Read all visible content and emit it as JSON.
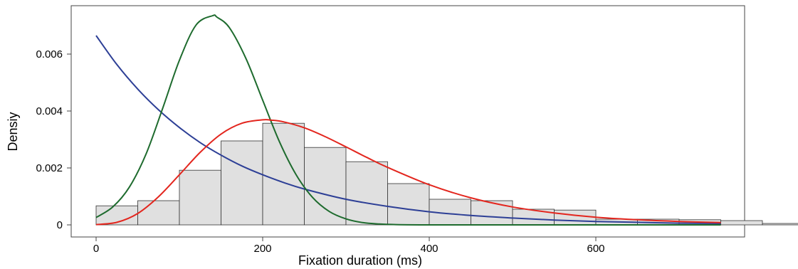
{
  "chart_data": {
    "type": "bar",
    "title": "",
    "xlabel": "Fixation duration (ms)",
    "ylabel": "Densiy",
    "xlim": [
      -50,
      780
    ],
    "ylim": [
      -0.0003,
      0.0078
    ],
    "x_ticks": [
      {
        "value": 0,
        "label": "0"
      },
      {
        "value": 200,
        "label": "200"
      },
      {
        "value": 400,
        "label": "400"
      },
      {
        "value": 600,
        "label": "600"
      }
    ],
    "y_ticks": [
      {
        "value": 0,
        "label": "0"
      },
      {
        "value": 0.002,
        "label": "0.002"
      },
      {
        "value": 0.004,
        "label": "0.004"
      },
      {
        "value": 0.006,
        "label": "0.006"
      }
    ],
    "grid": false,
    "histogram": {
      "bin_width": 50,
      "bin_starts": [
        0,
        50,
        100,
        150,
        200,
        250,
        300,
        350,
        400,
        450,
        500,
        550,
        600,
        650,
        700,
        750,
        800
      ],
      "values": [
        0.00067,
        0.00085,
        0.00192,
        0.00295,
        0.00357,
        0.00272,
        0.00222,
        0.00145,
        0.0009,
        0.00085,
        0.00055,
        0.00052,
        0.0002,
        0.0002,
        0.00018,
        0.00015,
        5e-05
      ],
      "fill_color": "#e0e0e0",
      "stroke_color": "#333333"
    },
    "series": [
      {
        "color": "#2d3f96",
        "type": "line",
        "x": [
          0,
          25,
          50,
          75,
          100,
          125,
          150,
          175,
          200,
          225,
          250,
          300,
          350,
          400,
          450,
          500,
          550,
          600,
          650,
          700,
          750
        ],
        "y": [
          0.00665,
          0.00563,
          0.00477,
          0.00404,
          0.00342,
          0.00289,
          0.00245,
          0.00207,
          0.00176,
          0.00149,
          0.00126,
          0.0009,
          0.00065,
          0.00046,
          0.00033,
          0.00024,
          0.00017,
          0.00012,
          9e-05,
          6e-05,
          5e-05
        ]
      },
      {
        "color": "#1e6b2e",
        "type": "line",
        "x": [
          0,
          20,
          40,
          60,
          80,
          100,
          120,
          140,
          145,
          160,
          180,
          200,
          220,
          240,
          260,
          280,
          300,
          320,
          340,
          360,
          400,
          500,
          600,
          750
        ],
        "y": [
          0.00026,
          0.00063,
          0.00133,
          0.00249,
          0.0041,
          0.00578,
          0.00702,
          0.00735,
          0.0073,
          0.00693,
          0.00584,
          0.00438,
          0.00293,
          0.00177,
          0.00096,
          0.00047,
          0.00021,
          8e-05,
          3e-05,
          1e-05,
          0.0,
          0.0,
          0.0,
          0.0
        ]
      },
      {
        "color": "#e3261e",
        "type": "line",
        "x": [
          0,
          25,
          50,
          75,
          100,
          125,
          150,
          175,
          200,
          210,
          225,
          250,
          275,
          300,
          325,
          350,
          400,
          450,
          500,
          550,
          600,
          650,
          700,
          750
        ],
        "y": [
          1e-05,
          9e-05,
          0.0004,
          0.00099,
          0.00176,
          0.00255,
          0.00319,
          0.00357,
          0.00369,
          0.00368,
          0.00362,
          0.00341,
          0.0031,
          0.00274,
          0.00237,
          0.00202,
          0.00141,
          0.00095,
          0.00063,
          0.00042,
          0.00027,
          0.00018,
          0.00012,
          8e-05
        ]
      }
    ]
  }
}
